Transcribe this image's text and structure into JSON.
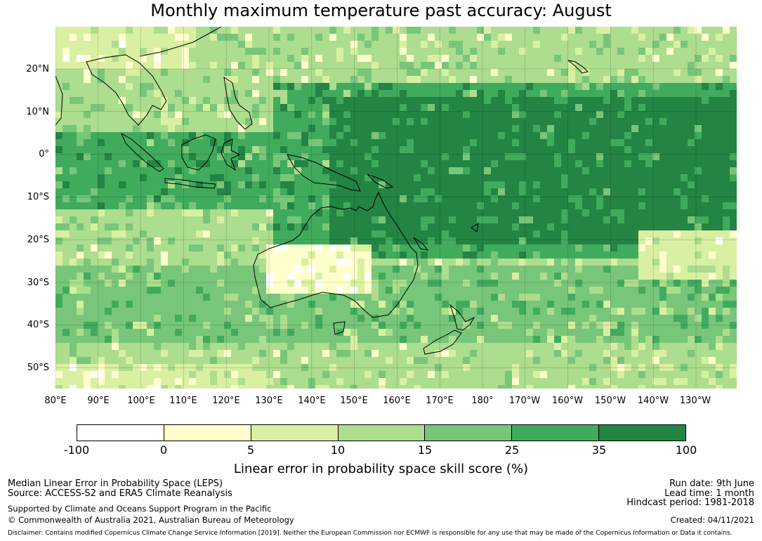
{
  "title": "Monthly maximum temperature past accuracy: August",
  "map": {
    "lat_labels": [
      "20°N",
      "10°N",
      "0°",
      "10°S",
      "20°S",
      "30°S",
      "40°S",
      "50°S"
    ],
    "lon_labels": [
      "80°E",
      "90°E",
      "100°E",
      "110°E",
      "120°E",
      "130°E",
      "140°E",
      "150°E",
      "160°E",
      "170°E",
      "180°",
      "170°W",
      "160°W",
      "150°W",
      "140°W",
      "130°W"
    ],
    "gridlines": true,
    "colors": {
      "lt0": "#ffffff",
      "0to5": "#ffffcc",
      "5to10": "#d9f0a3",
      "10to15": "#addd8e",
      "15to25": "#78c679",
      "25to35": "#41ab5d",
      "35to100": "#238443",
      "coastline": "#000000"
    }
  },
  "colorbar": {
    "ticks": [
      "-100",
      "0",
      "5",
      "10",
      "15",
      "25",
      "35",
      "100"
    ],
    "colors": [
      "#ffffff",
      "#ffffcc",
      "#d9f0a3",
      "#addd8e",
      "#78c679",
      "#41ab5d",
      "#238443"
    ],
    "label": "Linear error in probability space skill score (%)"
  },
  "info": {
    "left_line1": "Median Linear Error in Probability Space (LEPS)",
    "left_line2": "Source: ACCESS-S2 and ERA5 Climate Reanalysis",
    "left_line3": "Supported by Climate and Oceans Support Program in the Pacific",
    "left_line4": "© Commonwealth of Australia 2021, Australian Bureau of Meteorology",
    "run_date": "Run date: 9th June",
    "lead_time": "Lead time: 1 month",
    "hindcast": "Hindcast period: 1981-2018",
    "created": "Created: 04/11/2021",
    "disclaimer": "Disclaimer: Contains modified Copernicus Climate Change Service Information [2019]. Neither the European Commission nor ECMWF is responsible for any use that may be made of the Copernicus Information or Data it contains."
  }
}
